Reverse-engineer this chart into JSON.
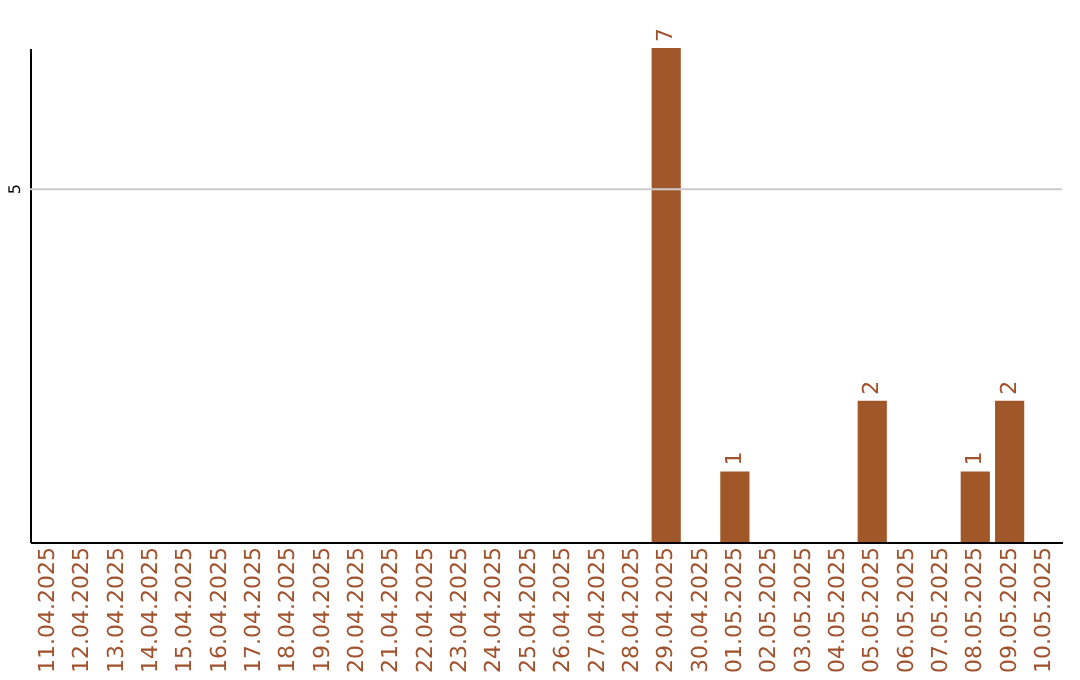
{
  "chart_data": {
    "type": "bar",
    "categories": [
      "11.04.2025",
      "12.04.2025",
      "13.04.2025",
      "14.04.2025",
      "15.04.2025",
      "16.04.2025",
      "17.04.2025",
      "18.04.2025",
      "19.04.2025",
      "20.04.2025",
      "21.04.2025",
      "22.04.2025",
      "23.04.2025",
      "24.04.2025",
      "25.04.2025",
      "26.04.2025",
      "27.04.2025",
      "28.04.2025",
      "29.04.2025",
      "30.04.2025",
      "01.05.2025",
      "02.05.2025",
      "03.05.2025",
      "04.05.2025",
      "05.05.2025",
      "06.05.2025",
      "07.05.2025",
      "08.05.2025",
      "09.05.2025",
      "10.05.2025"
    ],
    "values": [
      null,
      null,
      null,
      null,
      null,
      null,
      null,
      null,
      null,
      null,
      null,
      null,
      null,
      null,
      null,
      null,
      null,
      null,
      7,
      null,
      1,
      null,
      null,
      null,
      2,
      null,
      null,
      1,
      2,
      null
    ],
    "value_labels": [
      null,
      null,
      null,
      null,
      null,
      null,
      null,
      null,
      null,
      null,
      null,
      null,
      null,
      null,
      null,
      null,
      null,
      null,
      "7",
      null,
      "1",
      null,
      null,
      null,
      "2",
      null,
      null,
      "1",
      "2",
      null
    ],
    "color": "#a0582a",
    "ylim": [
      0,
      7
    ],
    "ref_lines": [
      {
        "axis": "y",
        "value": 5,
        "label": "5",
        "color": "#cccccc"
      }
    ]
  }
}
